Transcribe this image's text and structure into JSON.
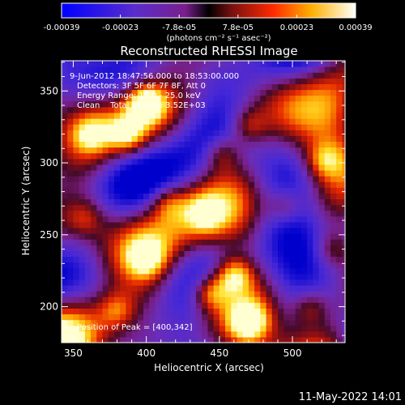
{
  "colorbar": {
    "tick_labels": [
      "-0.00039",
      "-0.00023",
      "-7.8e-05",
      "7.8e-05",
      "0.00023",
      "0.00039"
    ],
    "units_label": "(photons cm⁻² s⁻¹ asec⁻²)",
    "range": [
      -0.00039,
      0.00039
    ]
  },
  "image": {
    "title": "Reconstructed RHESSI Image",
    "info_lines": [
      "9-Jun-2012 18:47:56.000 to 18:53:00.000",
      "Detectors: 3F 5F 6F 7F 8F, Att 0",
      "Energy Range: 10.0 - 25.0 keV",
      "Clean    Total Counts: 3.52E+03"
    ],
    "peak_label": "Position of Peak = [400,342]",
    "footer_timestamp": "11-May-2022 14:01"
  },
  "chart_data": {
    "type": "heatmap",
    "title": "Reconstructed RHESSI Image",
    "xlabel": "Heliocentric X (arcsec)",
    "ylabel": "Heliocentric Y (arcsec)",
    "xlim": [
      342,
      536
    ],
    "ylim": [
      175,
      371
    ],
    "x_ticks": [
      350,
      400,
      450,
      500
    ],
    "y_ticks": [
      200,
      250,
      300,
      350
    ],
    "colormap": "blue-purple-red-yellow-white",
    "peak": [
      400,
      342
    ],
    "bright_regions": [
      {
        "x": 400,
        "y": 342,
        "level": 1.0
      },
      {
        "x": 387,
        "y": 320,
        "level": 0.65
      },
      {
        "x": 362,
        "y": 320,
        "level": 0.55
      },
      {
        "x": 452,
        "y": 307,
        "level": 0.55
      },
      {
        "x": 470,
        "y": 326,
        "level": 0.5
      },
      {
        "x": 440,
        "y": 265,
        "level": 0.55
      },
      {
        "x": 415,
        "y": 273,
        "level": 0.5
      },
      {
        "x": 460,
        "y": 222,
        "level": 0.85
      },
      {
        "x": 444,
        "y": 210,
        "level": 0.8
      },
      {
        "x": 470,
        "y": 190,
        "level": 0.85
      },
      {
        "x": 400,
        "y": 234,
        "level": 0.6
      },
      {
        "x": 380,
        "y": 198,
        "level": 0.5
      },
      {
        "x": 522,
        "y": 302,
        "level": 0.55
      },
      {
        "x": 528,
        "y": 240,
        "level": 0.45
      },
      {
        "x": 512,
        "y": 200,
        "level": 0.5
      },
      {
        "x": 358,
        "y": 262,
        "level": 0.4
      },
      {
        "x": 495,
        "y": 270,
        "level": 0.5
      }
    ]
  }
}
